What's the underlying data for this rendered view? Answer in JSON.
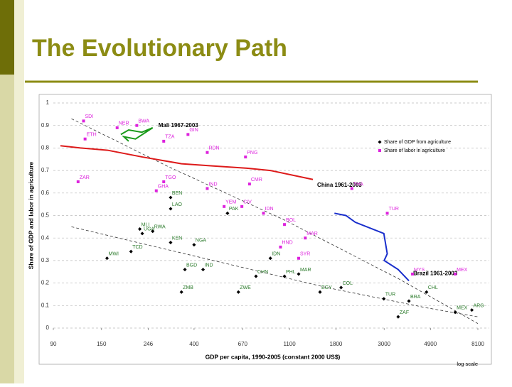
{
  "header": {
    "title": "The Evolutionary Path"
  },
  "chart_data": {
    "type": "scatter",
    "y_label": "Share of GDP and labor in agriculture",
    "x_label": "GDP per capita, 1990-2005 (constant 2000 US$)",
    "x_scale_note": "log scale",
    "xscale": "log",
    "xlim": [
      90,
      8100
    ],
    "ylim": [
      0,
      1
    ],
    "xticks": [
      90,
      150,
      246,
      400,
      670,
      1100,
      1800,
      3000,
      4900,
      8100
    ],
    "yticks": [
      0,
      0.1,
      0.2,
      0.3,
      0.4,
      0.5,
      0.6,
      0.7,
      0.8,
      0.9,
      1
    ],
    "grid": true,
    "legend_position": "upper right",
    "series": [
      {
        "name": "Share of GDP from agriculture",
        "color": "#000000",
        "marker": "diamond",
        "labels": [
          "MWI",
          "BEN",
          "LAO",
          "PAK",
          "UGA",
          "IDN",
          "PHL",
          "ZWE",
          "ZMB",
          "COL",
          "CHL",
          "ARG",
          "ZAF",
          "BRA",
          "EGY",
          "MAR",
          "TUR",
          "CHN",
          "IND",
          "BGD",
          "KEN",
          "NGA",
          "TCD",
          "RWA",
          "MLI",
          "MEX"
        ],
        "x": [
          159,
          312,
          312,
          570,
          231,
          898,
          1043,
          640,
          350,
          1900,
          4700,
          7600,
          3480,
          3900,
          1520,
          1212,
          2990,
          771,
          440,
          363,
          312,
          400,
          205,
          258,
          225,
          6370
        ],
        "values": [
          0.31,
          0.58,
          0.53,
          0.51,
          0.42,
          0.31,
          0.23,
          0.16,
          0.16,
          0.18,
          0.16,
          0.08,
          0.05,
          0.12,
          0.16,
          0.24,
          0.13,
          0.23,
          0.26,
          0.26,
          0.38,
          0.37,
          0.34,
          0.43,
          0.44,
          0.07
        ]
      },
      {
        "name": "Share of labor in agriculture",
        "color": "#dd22dd",
        "marker": "square",
        "labels": [
          "SDI",
          "NER",
          "BWA",
          "ETH",
          "GIN",
          "TZA",
          "RDN",
          "PNG",
          "TGO",
          "ZAR",
          "GHA",
          "IND",
          "CMR",
          "THA",
          "CIV",
          "YEM",
          "IDN",
          "BOL",
          "MAR",
          "HND",
          "TUR",
          "MEX",
          "MYS",
          "SYR"
        ],
        "x": [
          124,
          177,
          218,
          126,
          375,
          290,
          460,
          690,
          290,
          117,
          268,
          460,
          720,
          2130,
          664,
          550,
          835,
          1043,
          1300,
          1000,
          3100,
          6370,
          4050,
          1212
        ],
        "values": [
          0.92,
          0.89,
          0.9,
          0.84,
          0.86,
          0.83,
          0.78,
          0.76,
          0.65,
          0.65,
          0.61,
          0.62,
          0.64,
          0.62,
          0.54,
          0.54,
          0.51,
          0.46,
          0.4,
          0.36,
          0.51,
          0.24,
          0.24,
          0.31
        ]
      }
    ],
    "paths": [
      {
        "name": "Mali 1967-2003",
        "color": "#1a9a1a",
        "x": [
          184,
          200,
          230,
          258,
          215,
          190,
          200
        ],
        "y": [
          0.86,
          0.88,
          0.87,
          0.89,
          0.84,
          0.85,
          0.83
        ]
      },
      {
        "name": "China 1961-2003",
        "color": "#dd1a1a",
        "x": [
          97,
          120,
          160,
          231,
          350,
          491,
          700,
          898,
          1410
        ],
        "y": [
          0.81,
          0.8,
          0.79,
          0.76,
          0.73,
          0.72,
          0.71,
          0.7,
          0.66
        ]
      },
      {
        "name": "Brazil 1961-2003",
        "color": "#1a2fcc",
        "x": [
          1771,
          2000,
          2210,
          2990,
          3100,
          3000,
          3480,
          3900
        ],
        "y": [
          0.51,
          0.5,
          0.47,
          0.42,
          0.33,
          0.3,
          0.26,
          0.21
        ]
      }
    ],
    "trend_lines": [
      {
        "x": [
          109,
          300,
          1043,
          3480,
          8100
        ],
        "y": [
          0.93,
          0.72,
          0.48,
          0.22,
          0.02
        ]
      },
      {
        "x": [
          109,
          491,
          1635,
          4700,
          8100
        ],
        "y": [
          0.45,
          0.3,
          0.18,
          0.09,
          0.05
        ]
      }
    ]
  }
}
